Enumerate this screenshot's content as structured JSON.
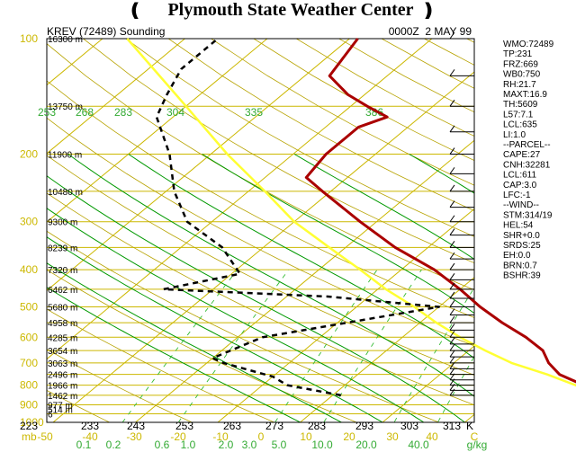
{
  "header": {
    "title": "Plymouth State Weather Center",
    "station": "KREV (72489) Sounding",
    "time": "0000Z  2 MAY 99"
  },
  "chart_data": {
    "type": "skew-t sounding",
    "pressure_levels": [
      {
        "p": 100,
        "height": "16300 m"
      },
      {
        "p": 150,
        "height": "13750 m"
      },
      {
        "p": 200,
        "height": "11900 m"
      },
      {
        "p": 250,
        "height": "10480 m"
      },
      {
        "p": 300,
        "height": "9300 m"
      },
      {
        "p": 350,
        "height": "8239 m"
      },
      {
        "p": 400,
        "height": "7320 m"
      },
      {
        "p": 450,
        "height": "6462 m"
      },
      {
        "p": 500,
        "height": "5680 m"
      },
      {
        "p": 550,
        "height": "4958 m"
      },
      {
        "p": 600,
        "height": "4285 m"
      },
      {
        "p": 650,
        "height": "3654 m"
      },
      {
        "p": 700,
        "height": "3063 m"
      },
      {
        "p": 750,
        "height": "2496 m"
      },
      {
        "p": 800,
        "height": "1966 m"
      },
      {
        "p": 850,
        "height": "1462 m"
      },
      {
        "p": 900,
        "height": "977 m"
      },
      {
        "p": 925,
        "height": "514 m"
      },
      {
        "p": 950,
        "height": "6"
      }
    ],
    "pressure_labels": [
      "100",
      "200",
      "300",
      "400",
      "500",
      "600",
      "700",
      "800",
      "900",
      "1000"
    ],
    "pressure_label_values": [
      100,
      200,
      300,
      400,
      500,
      600,
      700,
      800,
      900,
      1000
    ],
    "temp_axis_labels": [
      "-50",
      "-40",
      "-30",
      "-20",
      "-10",
      "0",
      "10",
      "20",
      "30",
      "40",
      "C"
    ],
    "temp_axis_values": [
      -50,
      -40,
      -30,
      -20,
      -10,
      0,
      10,
      20,
      30,
      40
    ],
    "kelvin_labels": [
      "223",
      "233",
      "243",
      "253",
      "263",
      "273",
      "283",
      "293",
      "303",
      "313",
      "K"
    ],
    "kelvin_values": [
      223,
      233,
      243,
      253,
      263,
      273,
      283,
      293,
      303,
      313
    ],
    "mixing_ratio_labels": [
      "0.1",
      "0.2",
      "0.6",
      "1.0",
      "2.0",
      "3.0",
      "5.0",
      "10.0",
      "20.0",
      "40.0",
      "g/kg"
    ],
    "theta_labels": [
      "253",
      "268",
      "283",
      "304",
      "335",
      "386"
    ],
    "temperature": [
      {
        "p": 850,
        "t": 12.5
      },
      {
        "p": 800,
        "t": 9
      },
      {
        "p": 750,
        "t": 4.5
      },
      {
        "p": 700,
        "t": 1.5
      },
      {
        "p": 650,
        "t": -1
      },
      {
        "p": 600,
        "t": -5
      },
      {
        "p": 550,
        "t": -10
      },
      {
        "p": 500,
        "t": -15
      },
      {
        "p": 450,
        "t": -20
      },
      {
        "p": 400,
        "t": -26
      },
      {
        "p": 350,
        "t": -34
      },
      {
        "p": 300,
        "t": -42
      },
      {
        "p": 250,
        "t": -51
      },
      {
        "p": 230,
        "t": -55
      },
      {
        "p": 200,
        "t": -56
      },
      {
        "p": 170,
        "t": -56
      },
      {
        "p": 160,
        "t": -54
      },
      {
        "p": 150,
        "t": -58
      },
      {
        "p": 140,
        "t": -62
      },
      {
        "p": 125,
        "t": -67
      },
      {
        "p": 100,
        "t": -69
      }
    ],
    "dewpoint": [
      {
        "p": 850,
        "td": -19
      },
      {
        "p": 800,
        "td": -27
      },
      {
        "p": 760,
        "td": -30
      },
      {
        "p": 700,
        "td": -38
      },
      {
        "p": 680,
        "td": -40
      },
      {
        "p": 600,
        "td": -37
      },
      {
        "p": 500,
        "td": -20
      },
      {
        "p": 470,
        "td": -35
      },
      {
        "p": 450,
        "td": -56
      },
      {
        "p": 410,
        "td": -49
      },
      {
        "p": 350,
        "td": -55
      },
      {
        "p": 300,
        "td": -63
      },
      {
        "p": 250,
        "td": -69
      },
      {
        "p": 200,
        "td": -75
      },
      {
        "p": 160,
        "td": -82
      },
      {
        "p": 140,
        "td": -84
      },
      {
        "p": 120,
        "td": -86
      },
      {
        "p": 100,
        "td": -86
      }
    ],
    "parcel": [
      {
        "p": 850,
        "t": 12.5
      },
      {
        "p": 800,
        "t": 8
      },
      {
        "p": 750,
        "t": 3
      },
      {
        "p": 700,
        "t": -3
      },
      {
        "p": 650,
        "t": -8
      },
      {
        "p": 600,
        "t": -13
      },
      {
        "p": 550,
        "t": -18
      },
      {
        "p": 500,
        "t": -23
      },
      {
        "p": 450,
        "t": -29
      },
      {
        "p": 400,
        "t": -35
      },
      {
        "p": 350,
        "t": -42
      },
      {
        "p": 300,
        "t": -50
      },
      {
        "p": 250,
        "t": -58
      },
      {
        "p": 200,
        "t": -68
      },
      {
        "p": 150,
        "t": -80
      },
      {
        "p": 100,
        "t": -97
      }
    ],
    "colors": {
      "isotherm": "#ccb800",
      "isobar": "#ccb800",
      "dry_adiabat": "#b7a300",
      "moist_adiabat": "#009900",
      "mixing_ratio": "#33bb33",
      "temperature": "#aa0000",
      "dewpoint": "#000000",
      "parcel": "#ffff33"
    }
  },
  "indices": [
    "WMO:72489",
    "TP:231",
    "FRZ:669",
    "WB0:750",
    "RH:21.7",
    "MAXT:16.9",
    "TH:5609",
    "L57:7.1",
    "LCL:635",
    "LI:1.0",
    "--PARCEL--",
    "CAPE:27",
    "CNH:32281",
    "LCL:611",
    "CAP:3.0",
    "LFC:-1",
    "--WIND--",
    "STM:314/19",
    "HEL:54",
    "SHR+0.0",
    "SRDS:25",
    "EH:0.0",
    "BRN:0.7",
    "BSHR:39"
  ],
  "wind_levels": [
    100,
    125,
    150,
    175,
    200,
    225,
    250,
    275,
    300,
    325,
    350,
    375,
    400,
    425,
    450,
    475,
    500,
    525,
    550,
    575,
    600,
    625,
    650,
    675,
    700,
    725,
    750,
    775,
    800,
    825,
    850
  ],
  "axis_units": {
    "mb": "mb"
  }
}
